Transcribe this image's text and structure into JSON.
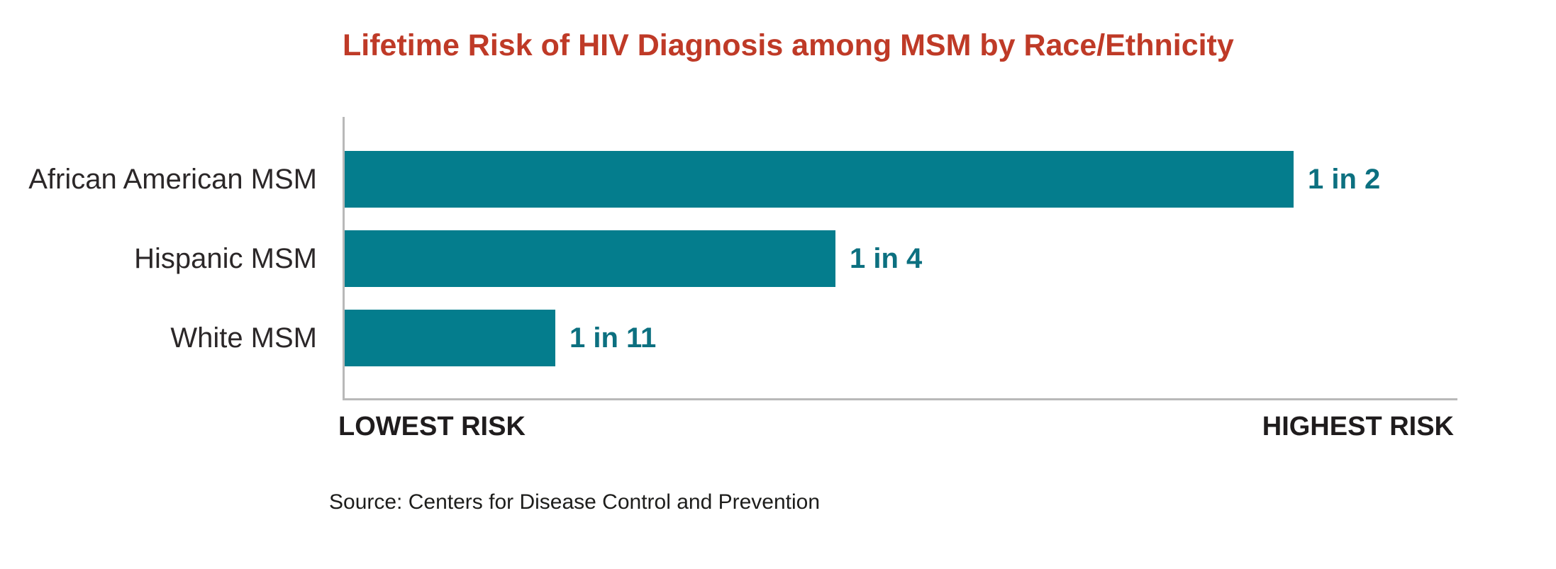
{
  "chart_data": {
    "type": "bar",
    "orientation": "horizontal",
    "title": "Lifetime Risk of HIV Diagnosis among MSM by Race/Ethnicity",
    "title_color": "#bf3a27",
    "bar_color": "#047d8d",
    "value_label_color": "#0c7080",
    "axis_line_color": "#b9b9b9",
    "categories": [
      "African American MSM",
      "Hispanic MSM",
      "White MSM"
    ],
    "values": [
      0.5,
      0.25,
      0.0909
    ],
    "value_labels": [
      "1 in 2",
      "1 in 4",
      "1 in 11"
    ],
    "bar_width_pct": [
      85.2,
      44.1,
      18.9
    ],
    "xlabel_left": "LOWEST RISK",
    "xlabel_right": "HIGHEST RISK",
    "source": "Source: Centers for Disease Control and Prevention",
    "grid": false,
    "legend": "none",
    "xlim": [
      "lowest risk",
      "highest risk"
    ]
  }
}
